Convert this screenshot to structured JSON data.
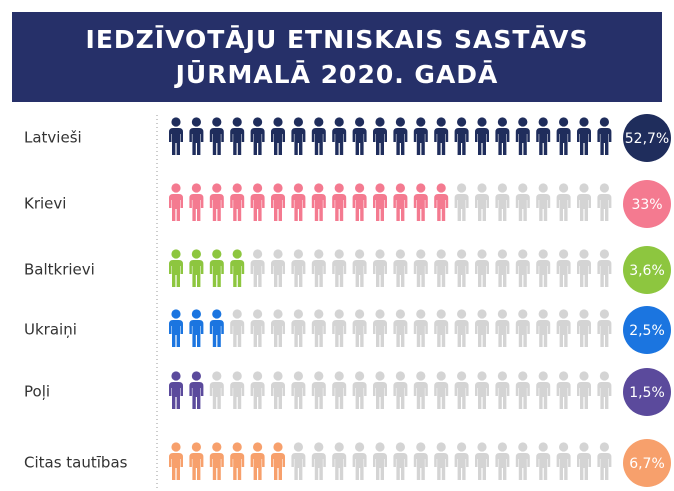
{
  "chart_data": {
    "type": "pictogram",
    "title": [
      "IEDZĪVOTĀJU ETNISKAIS SASTĀVS",
      "JŪRMALĀ 2020. GADĀ"
    ],
    "categories": [
      "Latvieši",
      "Krievi",
      "Baltkrievi",
      "Ukraiņi",
      "Poļi",
      "Citas tautības"
    ],
    "values": [
      52.7,
      33,
      3.6,
      2.5,
      1.5,
      6.7
    ],
    "value_labels": [
      "52,7%",
      "33%",
      "3,6%",
      "2,5%",
      "1,5%",
      "6,7%"
    ],
    "filled_icons": [
      22,
      14,
      4,
      3,
      2,
      6
    ],
    "total_icons": 22,
    "colors": [
      "#1f2d5c",
      "#f47a90",
      "#8dc63f",
      "#1b75e0",
      "#5b4a9c",
      "#f7a06c"
    ],
    "empty_color": "#d4d4d4"
  }
}
